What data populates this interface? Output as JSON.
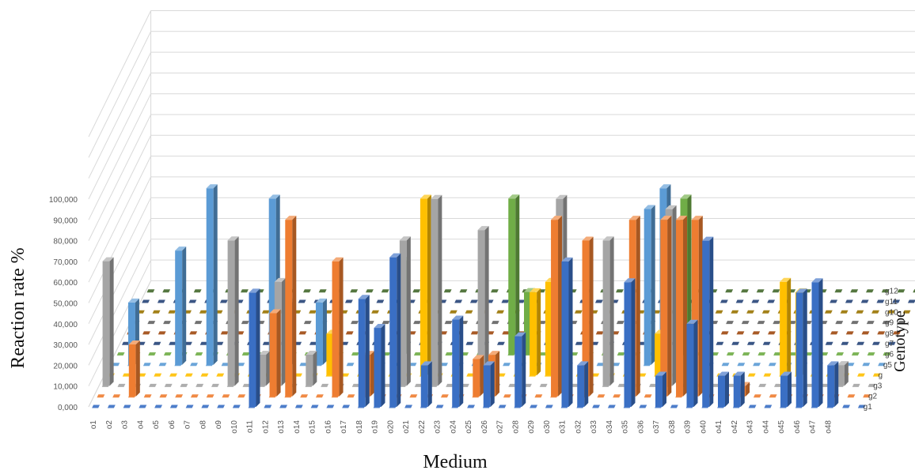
{
  "chart_data": {
    "type": "bar",
    "variant": "3d-column",
    "xlabel": "Medium",
    "ylabel": "Reaction rate %",
    "zlabel": "Genotype",
    "y_ticks": [
      "0,000",
      "10,000",
      "20,000",
      "30,000",
      "40,000",
      "50,000",
      "60,000",
      "70,000",
      "80,000",
      "90,000",
      "100,000"
    ],
    "ylim": [
      0,
      100
    ],
    "grid": true,
    "categories": [
      "o1",
      "o2",
      "o3",
      "o4",
      "o5",
      "o6",
      "o7",
      "o8",
      "o9",
      "o10",
      "o11",
      "o12",
      "o13",
      "o14",
      "o15",
      "o16",
      "o17",
      "o18",
      "o19",
      "o20",
      "o21",
      "o22",
      "o23",
      "o24",
      "o25",
      "o26",
      "o27",
      "o28",
      "o29",
      "o30",
      "o31",
      "o32",
      "o33",
      "o34",
      "o35",
      "o36",
      "o37",
      "o38",
      "o39",
      "o40",
      "o41",
      "o42",
      "o43",
      "o44",
      "o45",
      "o46",
      "o47",
      "o48"
    ],
    "series": [
      {
        "name": "g1",
        "color": "#3a6fc4",
        "values": [
          0,
          0,
          0,
          0,
          0,
          0,
          0,
          0,
          0,
          0,
          55,
          0,
          0,
          0,
          0,
          0,
          0,
          52,
          38,
          72,
          0,
          20,
          0,
          42,
          0,
          20,
          0,
          34,
          0,
          0,
          70,
          20,
          0,
          0,
          60,
          0,
          15,
          0,
          40,
          80,
          15,
          15,
          0,
          0,
          15,
          55,
          60,
          20
        ]
      },
      {
        "name": "g2",
        "color": "#ee7d31",
        "values": [
          0,
          0,
          25,
          0,
          0,
          0,
          0,
          0,
          0,
          0,
          0,
          40,
          85,
          0,
          0,
          65,
          0,
          20,
          0,
          0,
          0,
          0,
          0,
          0,
          18,
          20,
          0,
          0,
          0,
          85,
          0,
          75,
          0,
          0,
          85,
          0,
          85,
          85,
          85,
          0,
          0,
          5,
          0,
          0,
          0,
          0,
          0,
          0
        ]
      },
      {
        "name": "g3",
        "color": "#a5a5a5",
        "values": [
          60,
          0,
          0,
          0,
          0,
          0,
          0,
          0,
          70,
          0,
          15,
          50,
          0,
          15,
          0,
          0,
          0,
          0,
          0,
          70,
          0,
          90,
          0,
          0,
          75,
          0,
          0,
          0,
          0,
          90,
          0,
          0,
          70,
          0,
          0,
          0,
          85,
          0,
          0,
          0,
          0,
          0,
          0,
          0,
          0,
          0,
          0,
          10
        ]
      },
      {
        "name": "g",
        "color": "#ffc000",
        "values": [
          0,
          0,
          0,
          0,
          0,
          0,
          0,
          0,
          0,
          0,
          0,
          0,
          0,
          0,
          20,
          0,
          0,
          0,
          0,
          0,
          85,
          0,
          0,
          0,
          0,
          0,
          0,
          40,
          45,
          0,
          0,
          0,
          0,
          0,
          0,
          20,
          0,
          0,
          0,
          0,
          0,
          0,
          0,
          45,
          40,
          0,
          0,
          0
        ]
      },
      {
        "name": "g5",
        "color": "#5b9bd5",
        "values": [
          0,
          30,
          0,
          0,
          55,
          0,
          85,
          0,
          0,
          0,
          80,
          30,
          0,
          30,
          0,
          0,
          0,
          0,
          0,
          0,
          0,
          0,
          0,
          0,
          0,
          0,
          0,
          0,
          0,
          0,
          0,
          0,
          0,
          0,
          75,
          85,
          0,
          0,
          0,
          0,
          0,
          0,
          0,
          0,
          0,
          0,
          0,
          0
        ]
      },
      {
        "name": "g6",
        "color": "#70ad47",
        "values": [
          0,
          0,
          0,
          0,
          0,
          0,
          0,
          0,
          0,
          0,
          0,
          0,
          0,
          0,
          0,
          0,
          0,
          0,
          45,
          0,
          0,
          0,
          0,
          0,
          0,
          75,
          30,
          0,
          0,
          0,
          0,
          0,
          0,
          0,
          0,
          0,
          75,
          0,
          0,
          0,
          0,
          0,
          0,
          0,
          0,
          0,
          0,
          0
        ]
      },
      {
        "name": "g7",
        "color": "#254478",
        "values": [
          0,
          0,
          0,
          0,
          0,
          0,
          0,
          0,
          0,
          0,
          0,
          0,
          0,
          0,
          0,
          0,
          0,
          0,
          0,
          0,
          0,
          0,
          0,
          0,
          0,
          0,
          0,
          0,
          0,
          0,
          0,
          0,
          0,
          0,
          0,
          0,
          0,
          0,
          0,
          0,
          0,
          0,
          0,
          0,
          0,
          0,
          0,
          0
        ]
      },
      {
        "name": "g8",
        "color": "#9e480e",
        "values": [
          0,
          0,
          0,
          0,
          0,
          0,
          0,
          0,
          0,
          0,
          0,
          0,
          0,
          0,
          0,
          0,
          0,
          0,
          0,
          0,
          0,
          0,
          0,
          0,
          0,
          0,
          0,
          0,
          0,
          0,
          0,
          0,
          0,
          0,
          0,
          0,
          0,
          0,
          0,
          0,
          0,
          0,
          0,
          0,
          0,
          0,
          0,
          0
        ]
      },
      {
        "name": "g9",
        "color": "#636363",
        "values": [
          0,
          0,
          0,
          0,
          0,
          0,
          0,
          0,
          0,
          0,
          0,
          0,
          0,
          0,
          0,
          0,
          0,
          0,
          0,
          0,
          0,
          0,
          0,
          0,
          0,
          0,
          0,
          0,
          0,
          0,
          0,
          0,
          0,
          0,
          0,
          0,
          0,
          0,
          0,
          0,
          0,
          0,
          0,
          0,
          0,
          0,
          0,
          0
        ]
      },
      {
        "name": "g10",
        "color": "#997300",
        "values": [
          0,
          0,
          0,
          0,
          0,
          0,
          0,
          0,
          0,
          0,
          0,
          0,
          0,
          0,
          0,
          0,
          0,
          0,
          0,
          0,
          0,
          0,
          0,
          0,
          0,
          0,
          0,
          0,
          0,
          0,
          0,
          0,
          0,
          0,
          0,
          0,
          0,
          0,
          0,
          0,
          0,
          0,
          0,
          0,
          0,
          0,
          0,
          0
        ]
      },
      {
        "name": "g11",
        "color": "#264478",
        "values": [
          0,
          0,
          0,
          0,
          0,
          0,
          0,
          0,
          0,
          0,
          0,
          0,
          0,
          0,
          0,
          0,
          0,
          0,
          0,
          0,
          0,
          0,
          0,
          0,
          0,
          0,
          0,
          0,
          0,
          0,
          0,
          0,
          0,
          0,
          0,
          0,
          0,
          0,
          0,
          0,
          0,
          0,
          0,
          0,
          0,
          0,
          0,
          0
        ]
      },
      {
        "name": "g12",
        "color": "#43682b",
        "values": [
          0,
          0,
          0,
          0,
          0,
          0,
          0,
          0,
          0,
          0,
          0,
          0,
          0,
          0,
          0,
          0,
          0,
          0,
          0,
          0,
          0,
          0,
          0,
          0,
          0,
          0,
          0,
          0,
          0,
          0,
          0,
          0,
          0,
          0,
          0,
          0,
          0,
          0,
          0,
          0,
          0,
          0,
          0,
          0,
          0,
          0,
          0,
          0
        ]
      }
    ]
  }
}
